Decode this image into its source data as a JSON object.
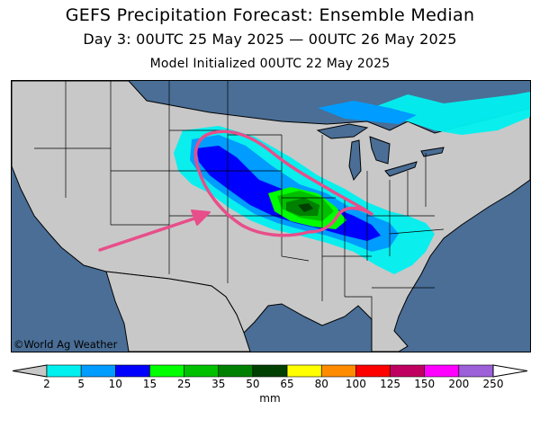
{
  "header": {
    "title": "GEFS Precipitation Forecast: Ensemble Median",
    "subtitle": "Day 3: 00UTC 25 May 2025 — 00UTC 26 May 2025",
    "initialized": "Model Initialized 00UTC 22 May 2025"
  },
  "map": {
    "region": "Continental United States",
    "credit": "©World Ag Weather",
    "colors": {
      "ocean": "#4a6e96",
      "land": "#c8c8c8",
      "annotation": "#e84e8a"
    },
    "annotations": [
      {
        "type": "arrow",
        "color": "#e84e8a",
        "direction": "southwest-to-northeast"
      },
      {
        "type": "loop-outline",
        "color": "#e84e8a"
      }
    ]
  },
  "legend": {
    "units": "mm",
    "bins": [
      {
        "color": "#c8c8c8"
      },
      {
        "color": "#00f0f0"
      },
      {
        "color": "#009cff"
      },
      {
        "color": "#0000ff"
      },
      {
        "color": "#00ff00"
      },
      {
        "color": "#00c000"
      },
      {
        "color": "#008000"
      },
      {
        "color": "#004000"
      },
      {
        "color": "#ffff00"
      },
      {
        "color": "#ff8c00"
      },
      {
        "color": "#ff0000"
      },
      {
        "color": "#c00060"
      },
      {
        "color": "#ff00ff"
      },
      {
        "color": "#9c60d8"
      },
      {
        "color": "#ffffff"
      }
    ],
    "ticks": [
      "2",
      "5",
      "10",
      "15",
      "25",
      "35",
      "50",
      "65",
      "80",
      "100",
      "125",
      "150",
      "200",
      "250"
    ]
  }
}
